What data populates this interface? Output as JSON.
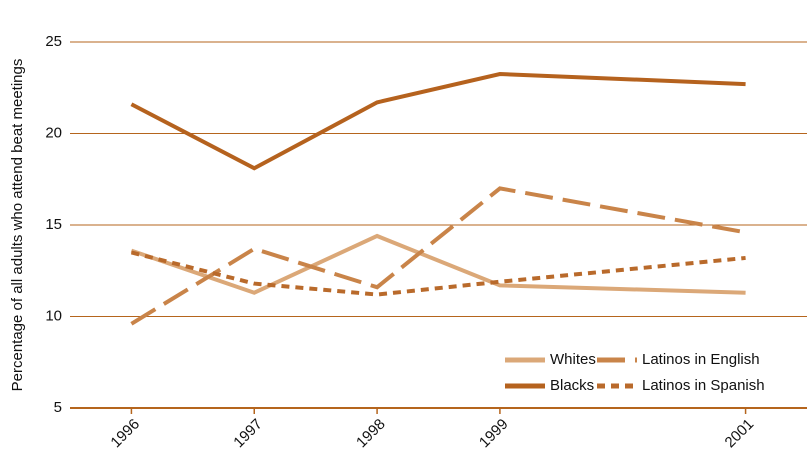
{
  "chart_data": {
    "type": "line",
    "y_label": "Percentage of all adults who attend beat meetings",
    "x": [
      1996,
      1997,
      1998,
      1999,
      2001
    ],
    "xlim": [
      1995.5,
      2001.5
    ],
    "xticks": [
      1996,
      1997,
      1998,
      1999,
      2001
    ],
    "ylim": [
      5,
      25
    ],
    "yticks": [
      5,
      10,
      15,
      20,
      25
    ],
    "grid": true,
    "grid_color": "#b5651d",
    "legend": "lower right",
    "series": [
      {
        "name": "Whites",
        "color": "#dba878",
        "dash": "solid",
        "values": [
          13.6,
          11.3,
          14.4,
          11.7,
          11.3
        ]
      },
      {
        "name": "Blacks",
        "color": "#b5621e",
        "dash": "solid",
        "values": [
          21.6,
          18.1,
          21.7,
          23.25,
          22.7
        ]
      },
      {
        "name": "Latinos in English",
        "color": "#c98449",
        "dash": "dashed",
        "values": [
          9.6,
          13.7,
          11.6,
          17.0,
          14.6
        ]
      },
      {
        "name": "Latinos in Spanish",
        "color": "#b96a2b",
        "dash": "dotted",
        "values": [
          13.5,
          11.8,
          11.2,
          11.9,
          13.2
        ]
      }
    ]
  }
}
